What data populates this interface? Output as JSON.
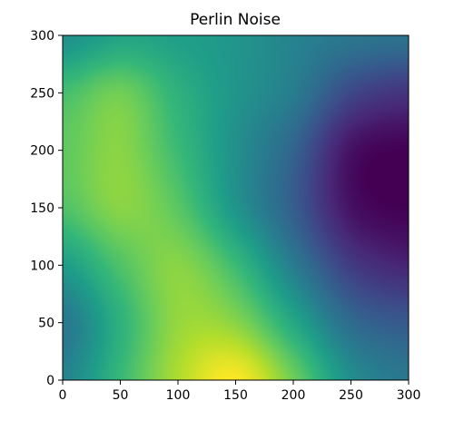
{
  "chart_data": {
    "type": "heatmap",
    "title": "Perlin Noise",
    "xlabel": "",
    "ylabel": "",
    "xlim": [
      0,
      300
    ],
    "ylim": [
      0,
      300
    ],
    "x_ticks": [
      0,
      50,
      100,
      150,
      200,
      250,
      300
    ],
    "y_ticks": [
      0,
      50,
      100,
      150,
      200,
      250,
      300
    ],
    "grid": false,
    "legend": "none",
    "colormap": "viridis",
    "value_range": [
      0,
      1
    ],
    "colormap_stops": [
      "#440154",
      "#482878",
      "#3e4989",
      "#31688e",
      "#26828e",
      "#1f9e89",
      "#35b779",
      "#6ece58",
      "#b5de2b",
      "#fde725"
    ],
    "grid_x": [
      0,
      50,
      100,
      150,
      200,
      250,
      300
    ],
    "grid_y": [
      0,
      50,
      100,
      150,
      200,
      250,
      300
    ],
    "values": [
      [
        0.45,
        0.67,
        0.88,
        1.0,
        0.78,
        0.5,
        0.4
      ],
      [
        0.4,
        0.64,
        0.84,
        0.82,
        0.6,
        0.35,
        0.28
      ],
      [
        0.55,
        0.72,
        0.82,
        0.68,
        0.42,
        0.18,
        0.1
      ],
      [
        0.72,
        0.82,
        0.74,
        0.52,
        0.3,
        0.05,
        0.0
      ],
      [
        0.75,
        0.82,
        0.68,
        0.5,
        0.32,
        0.05,
        0.0
      ],
      [
        0.7,
        0.78,
        0.64,
        0.52,
        0.42,
        0.22,
        0.15
      ],
      [
        0.5,
        0.58,
        0.56,
        0.52,
        0.45,
        0.4,
        0.38
      ]
    ]
  }
}
